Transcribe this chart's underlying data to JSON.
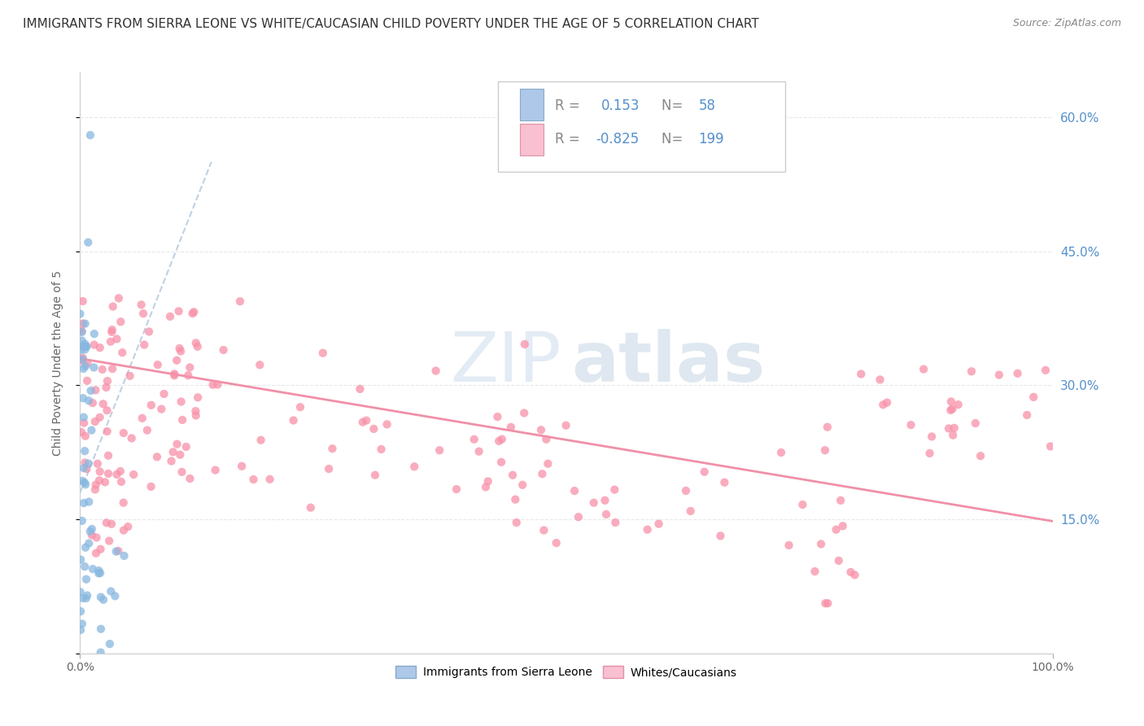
{
  "title": "IMMIGRANTS FROM SIERRA LEONE VS WHITE/CAUCASIAN CHILD POVERTY UNDER THE AGE OF 5 CORRELATION CHART",
  "source": "Source: ZipAtlas.com",
  "ylabel": "Child Poverty Under the Age of 5",
  "xlim": [
    0,
    1.0
  ],
  "ylim": [
    0,
    0.65
  ],
  "xticks": [
    0.0,
    1.0
  ],
  "xticklabels": [
    "0.0%",
    "100.0%"
  ],
  "yticks": [
    0.0,
    0.15,
    0.3,
    0.45,
    0.6
  ],
  "yticklabels": [
    "",
    "15.0%",
    "30.0%",
    "45.0%",
    "60.0%"
  ],
  "blue_R": 0.153,
  "blue_N": 58,
  "pink_R": -0.825,
  "pink_N": 199,
  "legend_label_blue": "Immigrants from Sierra Leone",
  "legend_label_pink": "Whites/Caucasians",
  "blue_fill_color": "#adc8e8",
  "blue_dot_color": "#88b8e0",
  "pink_fill_color": "#f8c0d0",
  "pink_dot_color": "#f890a8",
  "pink_line_color": "#f090a8",
  "blue_line_color": "#b8cce0",
  "watermark_zip_color": "#c8d8ea",
  "watermark_atlas_color": "#b8cce0",
  "title_fontsize": 11,
  "axis_label_fontsize": 10,
  "tick_fontsize": 10,
  "right_tick_color": "#5590cc",
  "grid_color": "#e8e8e8",
  "spine_color": "#cccccc"
}
